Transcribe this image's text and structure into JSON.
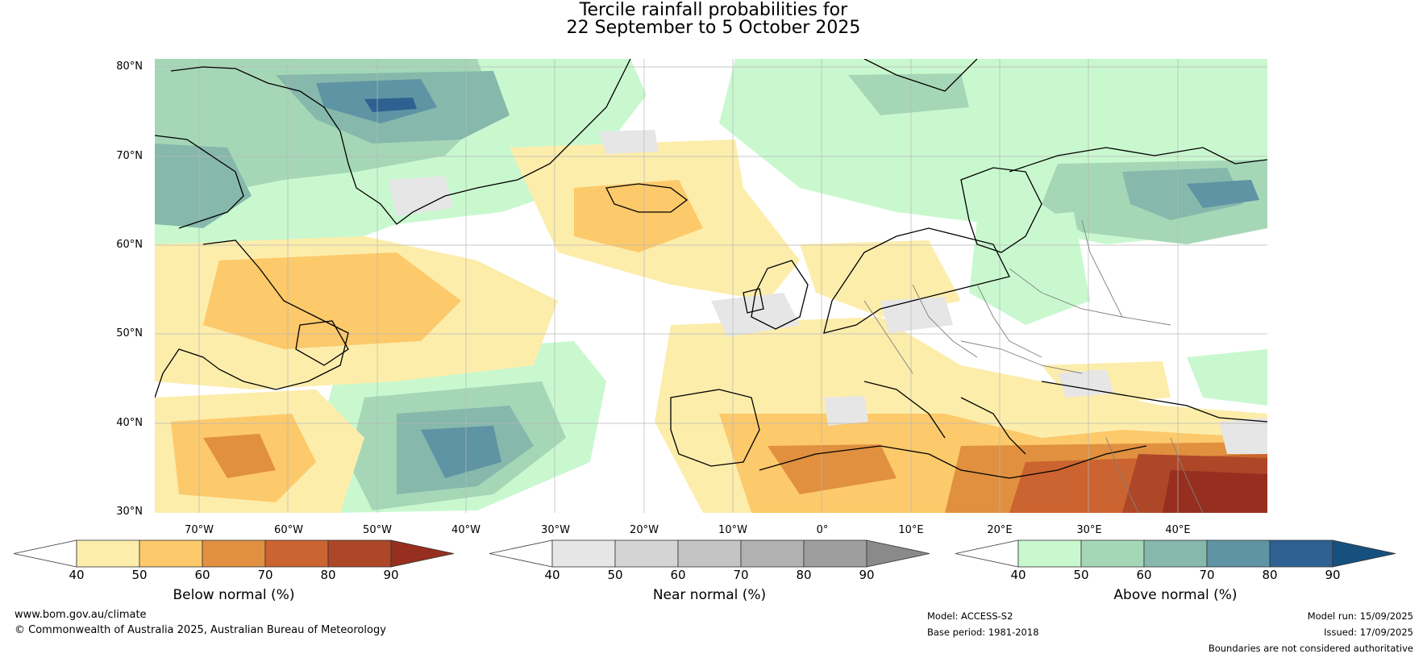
{
  "title": {
    "line1": "Tercile rainfall probabilities for",
    "line2": "22 September to 5 October 2025"
  },
  "map": {
    "lat_labels": [
      "80°N",
      "70°N",
      "60°N",
      "50°N",
      "40°N",
      "30°N"
    ],
    "lon_labels": [
      "70°W",
      "60°W",
      "50°W",
      "40°W",
      "30°W",
      "20°W",
      "10°W",
      "0°",
      "10°E",
      "20°E",
      "30°E",
      "40°E"
    ]
  },
  "colorbars": [
    {
      "id": "below",
      "label": "Below normal (%)",
      "ticks": [
        "40",
        "50",
        "60",
        "70",
        "80",
        "90"
      ],
      "colors": [
        "#fdedab",
        "#fcc96b",
        "#e0903f",
        "#cb6430",
        "#ae4728"
      ],
      "over_color": "#962f1f"
    },
    {
      "id": "near",
      "label": "Near normal (%)",
      "ticks": [
        "40",
        "50",
        "60",
        "70",
        "80",
        "90"
      ],
      "colors": [
        "#e6e6e6",
        "#d4d4d4",
        "#c4c4c4",
        "#b1b1b1",
        "#9e9e9e"
      ],
      "over_color": "#8a8a8a"
    },
    {
      "id": "above",
      "label": "Above normal (%)",
      "ticks": [
        "40",
        "50",
        "60",
        "70",
        "80",
        "90"
      ],
      "colors": [
        "#c9f8cf",
        "#a5d7b7",
        "#86b8ac",
        "#5e94a4",
        "#2e6191"
      ],
      "over_color": "#16507e"
    }
  ],
  "footer": {
    "website": "www.bom.gov.au/climate",
    "copyright": "© Commonwealth of Australia 2025, Australian Bureau of Meteorology",
    "model": "Model: ACCESS-S2",
    "base_period": "Base period: 1981-2018",
    "model_run": "Model run: 15/09/2025",
    "issued": "Issued: 17/09/2025",
    "disclaimer": "Boundaries are not considered authoritative"
  }
}
